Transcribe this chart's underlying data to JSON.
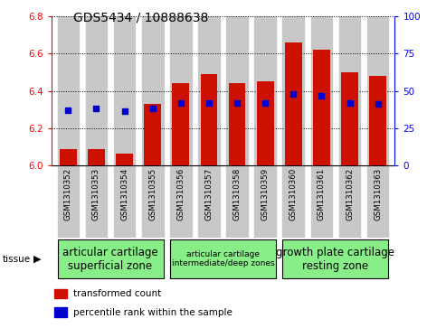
{
  "title": "GDS5434 / 10888638",
  "samples": [
    "GSM1310352",
    "GSM1310353",
    "GSM1310354",
    "GSM1310355",
    "GSM1310356",
    "GSM1310357",
    "GSM1310358",
    "GSM1310359",
    "GSM1310360",
    "GSM1310361",
    "GSM1310362",
    "GSM1310363"
  ],
  "red_values": [
    6.09,
    6.09,
    6.065,
    6.33,
    6.44,
    6.49,
    6.44,
    6.45,
    6.66,
    6.62,
    6.5,
    6.48
  ],
  "blue_values": [
    6.295,
    6.305,
    6.29,
    6.305,
    6.335,
    6.335,
    6.335,
    6.335,
    6.385,
    6.375,
    6.335,
    6.33
  ],
  "ylim_left": [
    6.0,
    6.8
  ],
  "ylim_right": [
    0,
    100
  ],
  "yticks_left": [
    6.0,
    6.2,
    6.4,
    6.6,
    6.8
  ],
  "yticks_right": [
    0,
    25,
    50,
    75,
    100
  ],
  "bar_color": "#cc1100",
  "dot_color": "#0000cc",
  "col_bg_color": "#c8c8c8",
  "groups": [
    {
      "label": "articular cartilage\nsuperficial zone",
      "start": 0,
      "end": 3,
      "fontsize": 8.5
    },
    {
      "label": "articular cartilage\nintermediate/deep zones",
      "start": 4,
      "end": 7,
      "fontsize": 6.5
    },
    {
      "label": "growth plate cartilage\nresting zone",
      "start": 8,
      "end": 11,
      "fontsize": 8.5
    }
  ],
  "group_color": "#88ee88",
  "bar_width": 0.6,
  "fig_width": 4.93,
  "fig_height": 3.63,
  "title_fontsize": 10
}
